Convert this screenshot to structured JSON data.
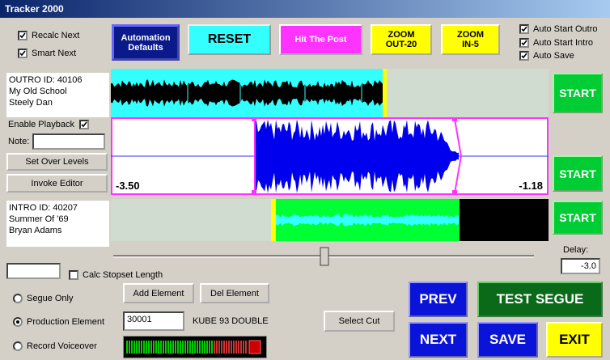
{
  "window": {
    "title": "Tracker 2000"
  },
  "top_options": [
    {
      "label": "Recalc Next",
      "checked": true
    },
    {
      "label": "Smart Next",
      "checked": true
    }
  ],
  "top_buttons": [
    "Automation Defaults",
    "RESET",
    "Hit The Post",
    "ZOOM OUT-20",
    "ZOOM IN-5"
  ],
  "auto_options": [
    {
      "label": "Auto Start Outro",
      "checked": true
    },
    {
      "label": "Auto Start Intro",
      "checked": true
    },
    {
      "label": "Auto Save",
      "checked": true
    }
  ],
  "outro": {
    "id": "OUTRO ID: 40106",
    "song": "My Old School",
    "artist": "Steely Dan",
    "button": "START"
  },
  "segue": {
    "enable_playback": {
      "label": "Enable Playback",
      "checked": true
    },
    "note_label": "Note:",
    "set_levels": "Set Over Levels",
    "invoke_editor": "Invoke Editor",
    "left_level": "-3.50",
    "right_level": "-1.18",
    "button": "START"
  },
  "intro": {
    "id": "INTRO ID: 40207",
    "song": "Summer Of '69",
    "artist": "Bryan Adams",
    "button": "START"
  },
  "delay": {
    "label": "Delay:",
    "value": "-3.0"
  },
  "calc_stopset": {
    "label": "Calc Stopset Length",
    "checked": false
  },
  "modes": [
    {
      "label": "Segue Only",
      "selected": false
    },
    {
      "label": "Production Element",
      "selected": true
    },
    {
      "label": "Record Voiceover",
      "selected": false
    }
  ],
  "element": {
    "add": "Add Element",
    "del": "Del Element",
    "code": "30001",
    "name": "KUBE 93 DOUBLE",
    "select_cut": "Select Cut"
  },
  "actions": {
    "prev": "PREV",
    "test": "TEST SEGUE",
    "next": "NEXT",
    "save": "SAVE",
    "exit": "EXIT"
  }
}
